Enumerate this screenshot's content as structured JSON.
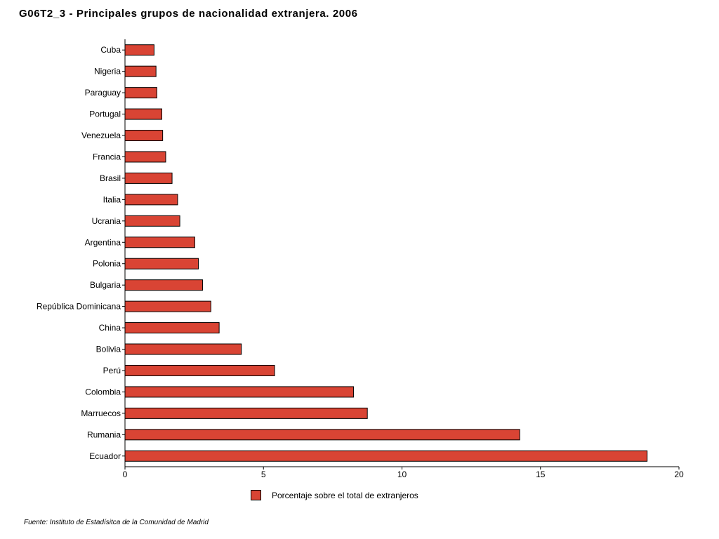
{
  "title": "G06T2_3 - Principales grupos de nacionalidad extranjera.  2006",
  "source": "Fuente: Instituto de Estadísitca de la Comunidad de Madrid",
  "colors": {
    "bar_fill": "#d94434",
    "bar_stroke": "#000000",
    "axis": "#000000"
  },
  "chart_data": {
    "type": "bar",
    "orientation": "horizontal",
    "title": "G06T2_3 - Principales grupos de nacionalidad extranjera.  2006",
    "categories": [
      "Cuba",
      "Nigeria",
      "Paraguay",
      "Portugal",
      "Venezuela",
      "Francia",
      "Brasil",
      "Italia",
      "Ucrania",
      "Argentina",
      "Polonia",
      "Bulgaria",
      "República Dominicana",
      "China",
      "Bolivia",
      "Perú",
      "Colombia",
      "Marruecos",
      "Rumania",
      "Ecuador"
    ],
    "series": [
      {
        "name": "Porcentaje sobre el total de extranjeros",
        "values": [
          1.05,
          1.12,
          1.15,
          1.33,
          1.36,
          1.47,
          1.7,
          1.9,
          1.98,
          2.52,
          2.65,
          2.8,
          3.1,
          3.4,
          4.2,
          5.4,
          8.25,
          8.75,
          14.25,
          18.85
        ]
      }
    ],
    "xlim": [
      0,
      20
    ],
    "xticks": [
      0,
      5,
      10,
      15,
      20
    ],
    "xlabel": "",
    "ylabel": "",
    "grid": false,
    "legend_position": "bottom"
  }
}
